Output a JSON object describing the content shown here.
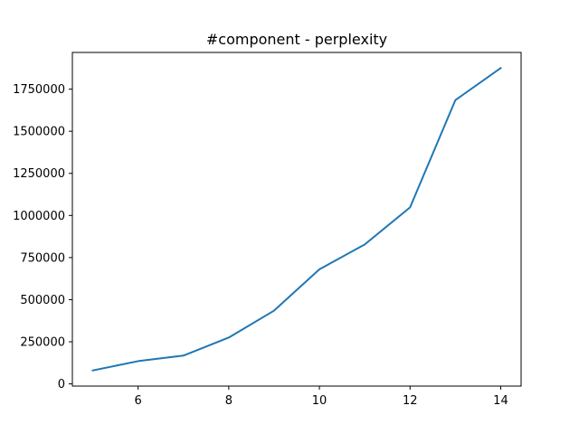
{
  "chart_data": {
    "type": "line",
    "title": "#component - perplexity",
    "xlabel": "",
    "ylabel": "",
    "x": [
      5,
      6,
      7,
      8,
      9,
      10,
      11,
      12,
      13,
      14
    ],
    "series": [
      {
        "name": "perplexity",
        "values": [
          80000,
          135000,
          168000,
          275000,
          435000,
          680000,
          828000,
          1048000,
          1685000,
          1875000
        ]
      }
    ],
    "xlim": [
      4.55,
      14.45
    ],
    "ylim": [
      -13000,
      1968000
    ],
    "x_ticks": [
      6,
      8,
      10,
      12,
      14
    ],
    "x_tick_labels": [
      "6",
      "8",
      "10",
      "12",
      "14"
    ],
    "y_ticks": [
      0,
      250000,
      500000,
      750000,
      1000000,
      1250000,
      1500000,
      1750000
    ],
    "y_tick_labels": [
      "0",
      "250000",
      "500000",
      "750000",
      "1000000",
      "1250000",
      "1500000",
      "1750000"
    ],
    "grid": false,
    "line_color": "#1f77b4"
  }
}
